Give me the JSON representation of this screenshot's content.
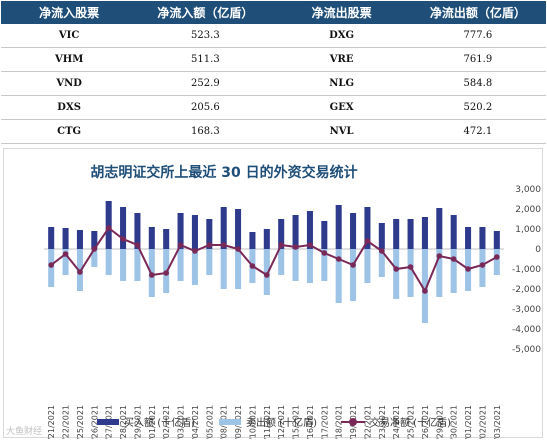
{
  "table": {
    "headers": [
      "净流入股票",
      "净流入额（亿盾）",
      "净流出股票",
      "净流出额（亿盾）"
    ],
    "rows": [
      [
        "VIC",
        "523.3",
        "DXG",
        "777.6"
      ],
      [
        "VHM",
        "511.3",
        "VRE",
        "761.9"
      ],
      [
        "VND",
        "252.9",
        "NLG",
        "584.8"
      ],
      [
        "DXS",
        "205.6",
        "GEX",
        "520.2"
      ],
      [
        "CTG",
        "168.3",
        "NVL",
        "472.1"
      ]
    ]
  },
  "watermark": "大鱼财经",
  "chart_data": {
    "type": "bar",
    "title": "胡志明证交所上最近  30 日的外资交易统计",
    "xlabel": "",
    "ylabel": "",
    "ylim": [
      -5000,
      3000
    ],
    "yticks": [
      3000,
      2000,
      1000,
      0,
      -1000,
      -2000,
      -3000,
      -4000,
      -5000
    ],
    "ytick_labels": [
      "3,000",
      "2,000",
      "1,000",
      "0",
      "-1,000",
      "-2,000",
      "-3,000",
      "-4,000",
      "-5,000"
    ],
    "grid": false,
    "legend": "bottom",
    "categories": [
      "10/21/2021",
      "10/22/2021",
      "10/25/2021",
      "10/26/2021",
      "10/27/2021",
      "10/28/2021",
      "10/29/2021",
      "11/01/2021",
      "11/02/2021",
      "11/03/2021",
      "11/04/2021",
      "11/05/2021",
      "11/08/2021",
      "11/09/2021",
      "11/10/2021",
      "11/11/2021",
      "11/12/2021",
      "11/15/2021",
      "11/16/2021",
      "11/17/2021",
      "11/18/2021",
      "11/19/2021",
      "11/22/2021",
      "11/23/2021",
      "11/24/2021",
      "11/25/2021",
      "11/26/2021",
      "11/29/2021",
      "11/30/2021",
      "12/01/2021",
      "12/02/2021",
      "12/03/2021"
    ],
    "series": [
      {
        "name": "买入额 (十亿盾)",
        "type": "bar",
        "color": "#2e3a8c",
        "values": [
          1100,
          1050,
          950,
          900,
          2400,
          2100,
          1800,
          1100,
          1000,
          1800,
          1700,
          1500,
          2100,
          2000,
          850,
          1000,
          1500,
          1700,
          1900,
          1400,
          2200,
          1800,
          2100,
          1300,
          1500,
          1500,
          1600,
          2050,
          1700,
          1100,
          1100,
          900
        ]
      },
      {
        "name": "卖出额 (十亿盾)",
        "type": "bar",
        "color": "#9dc3e6",
        "values": [
          -1900,
          -1300,
          -2100,
          -900,
          -1300,
          -1600,
          -1600,
          -2400,
          -2200,
          -1600,
          -1800,
          -1300,
          -2000,
          -2000,
          -1700,
          -2300,
          -1300,
          -1600,
          -1700,
          -1600,
          -2700,
          -2600,
          -1700,
          -1400,
          -2500,
          -2400,
          -3700,
          -2400,
          -2200,
          -2100,
          -1900,
          -1300
        ]
      },
      {
        "name": "交易净额 (十亿盾)",
        "type": "line",
        "color": "#7a2857",
        "values": [
          -800,
          -250,
          -1150,
          0,
          1050,
          500,
          200,
          -1300,
          -1200,
          200,
          -100,
          200,
          200,
          0,
          -850,
          -1300,
          200,
          100,
          200,
          -200,
          -500,
          -800,
          400,
          -100,
          -1000,
          -900,
          -2100,
          -350,
          -500,
          -1000,
          -800,
          -400
        ]
      }
    ]
  }
}
